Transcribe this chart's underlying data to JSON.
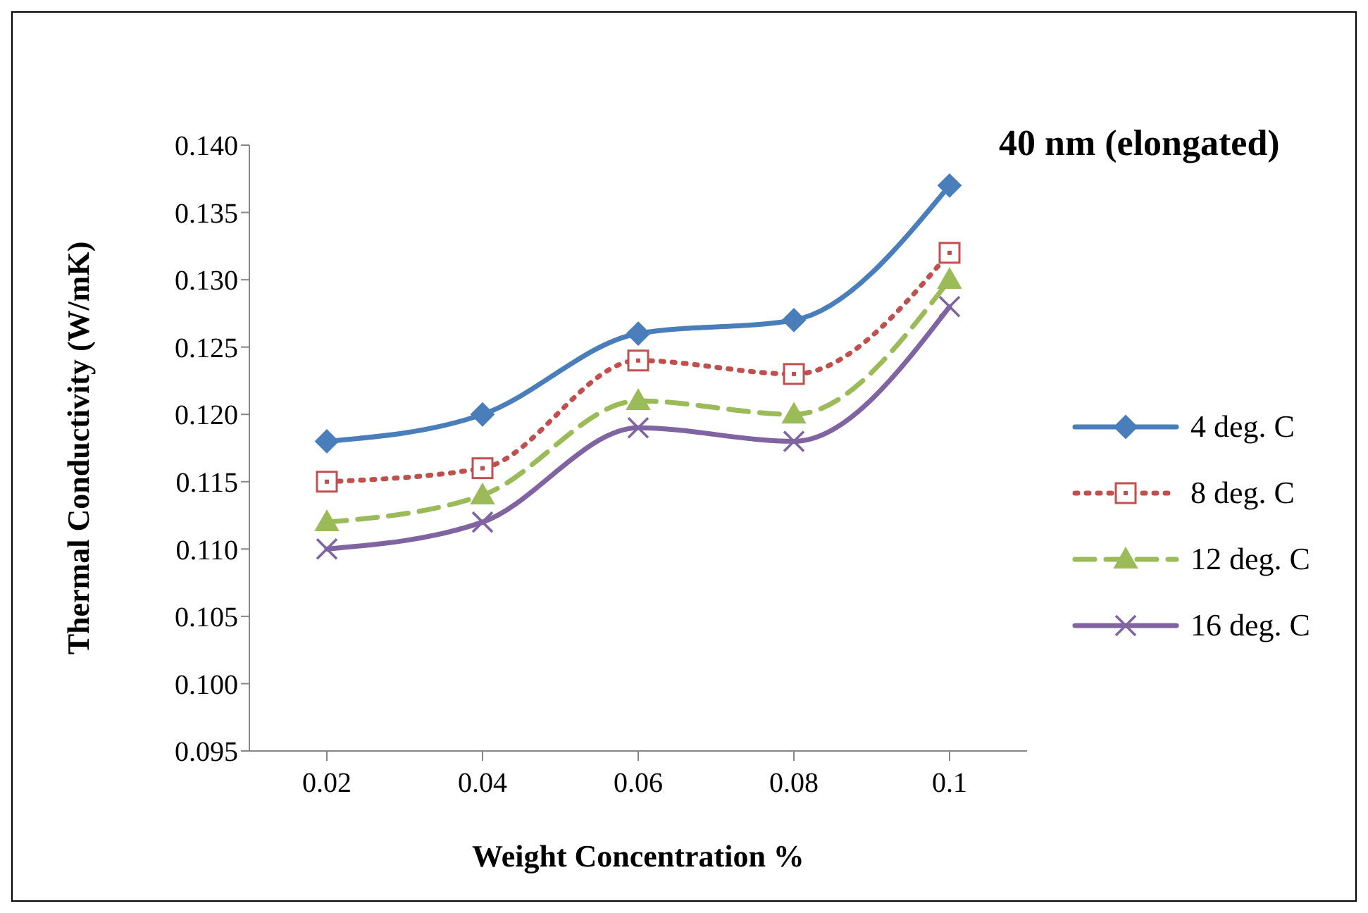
{
  "chart_data": {
    "type": "line",
    "title": "40 nm (elongated)",
    "xlabel": "Weight Concentration %",
    "ylabel": "Thermal Conductivity (W/mK)",
    "categories": [
      "0.02",
      "0.04",
      "0.06",
      "0.08",
      "0.1"
    ],
    "ylim": [
      0.095,
      0.14
    ],
    "yticks": [
      {
        "value": 0.095,
        "label": "0.095"
      },
      {
        "value": 0.1,
        "label": "0.100"
      },
      {
        "value": 0.105,
        "label": "0.105"
      },
      {
        "value": 0.11,
        "label": "0.110"
      },
      {
        "value": 0.115,
        "label": "0.115"
      },
      {
        "value": 0.12,
        "label": "0.120"
      },
      {
        "value": 0.125,
        "label": "0.125"
      },
      {
        "value": 0.13,
        "label": "0.130"
      },
      {
        "value": 0.135,
        "label": "0.135"
      },
      {
        "value": 0.14,
        "label": "0.140"
      }
    ],
    "grid": false,
    "legend": "right",
    "series": [
      {
        "name": "4 deg. C",
        "color": "#4a7ebb",
        "marker": "diamond",
        "line_style": "solid",
        "values": [
          0.118,
          0.12,
          0.126,
          0.127,
          0.137
        ]
      },
      {
        "name": "8 deg. C",
        "color": "#c0504d",
        "marker": "square",
        "line_style": "dotted",
        "values": [
          0.115,
          0.116,
          0.124,
          0.123,
          0.132
        ]
      },
      {
        "name": "12 deg. C",
        "color": "#9bbb59",
        "marker": "triangle",
        "line_style": "dashed",
        "values": [
          0.112,
          0.114,
          0.121,
          0.12,
          0.13
        ]
      },
      {
        "name": "16 deg. C",
        "color": "#8064a2",
        "marker": "cross",
        "line_style": "solid",
        "values": [
          0.11,
          0.112,
          0.119,
          0.118,
          0.128
        ]
      }
    ]
  }
}
